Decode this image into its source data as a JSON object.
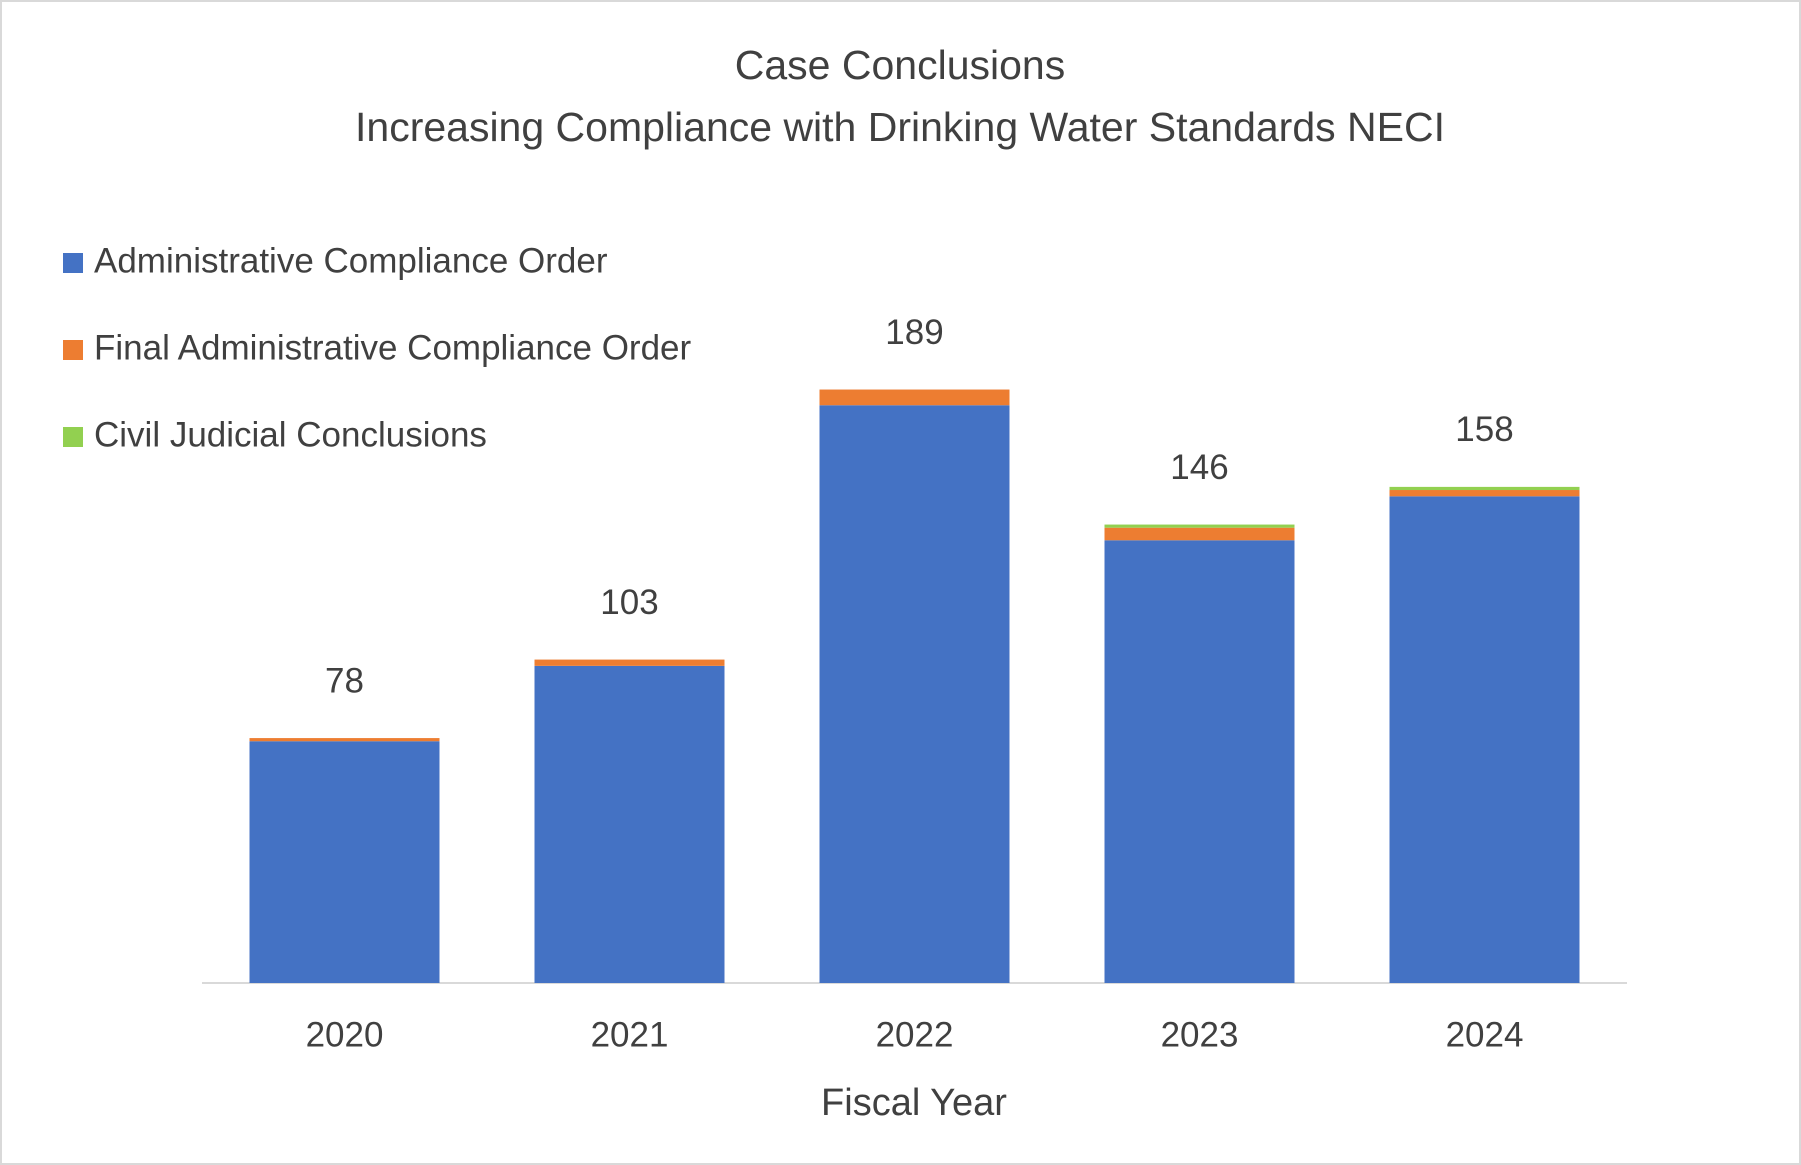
{
  "chart_data": {
    "type": "stacked-bar",
    "title": "Case Conclusions",
    "subtitle": "Increasing Compliance with Drinking Water Standards NECI",
    "x_label": "Fiscal Year",
    "categories": [
      "2020",
      "2021",
      "2022",
      "2023",
      "2024"
    ],
    "series": [
      {
        "name": "Administrative Compliance Order",
        "color": "#4472c4",
        "values": [
          77,
          101,
          184,
          141,
          155
        ]
      },
      {
        "name": "Final Administrative Compliance Order",
        "color": "#ed7d31",
        "values": [
          1,
          2,
          5,
          4,
          2
        ]
      },
      {
        "name": "Civil Judicial Conclusions",
        "color": "#92d050",
        "values": [
          0,
          0,
          0,
          1,
          1
        ]
      }
    ],
    "totals": [
      78,
      103,
      189,
      146,
      158
    ],
    "ylim": [
      0,
      200
    ],
    "legend": "top-left"
  }
}
